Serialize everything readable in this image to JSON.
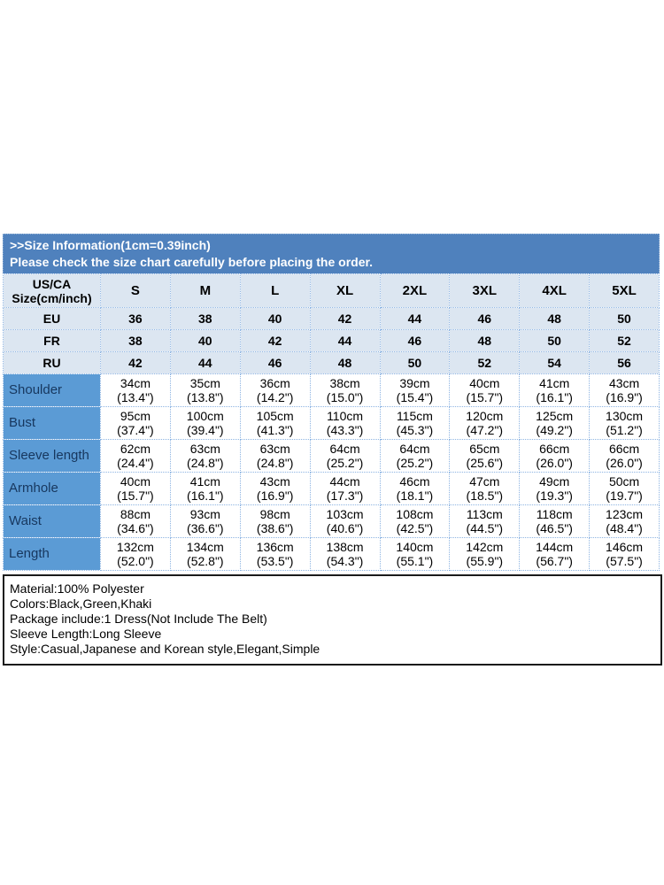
{
  "banner": {
    "line1": ">>Size Information(1cm=0.39inch)",
    "line2": "Please check the size chart carefully before placing the order."
  },
  "table": {
    "corner_line1": "US/CA",
    "corner_line2": "Size(cm/inch)",
    "size_columns": [
      "S",
      "M",
      "L",
      "XL",
      "2XL",
      "3XL",
      "4XL",
      "5XL"
    ],
    "region_rows": [
      {
        "label": "EU",
        "values": [
          "36",
          "38",
          "40",
          "42",
          "44",
          "46",
          "48",
          "50"
        ]
      },
      {
        "label": "FR",
        "values": [
          "38",
          "40",
          "42",
          "44",
          "46",
          "48",
          "50",
          "52"
        ]
      },
      {
        "label": "RU",
        "values": [
          "42",
          "44",
          "46",
          "48",
          "50",
          "52",
          "54",
          "56"
        ]
      }
    ],
    "measurement_rows": [
      {
        "label": "Shoulder",
        "cm": [
          "34cm",
          "35cm",
          "36cm",
          "38cm",
          "39cm",
          "40cm",
          "41cm",
          "43cm"
        ],
        "inch": [
          "(13.4\")",
          "(13.8\")",
          "(14.2\")",
          "(15.0\")",
          "(15.4\")",
          "(15.7\")",
          "(16.1\")",
          "(16.9\")"
        ]
      },
      {
        "label": "Bust",
        "cm": [
          "95cm",
          "100cm",
          "105cm",
          "110cm",
          "115cm",
          "120cm",
          "125cm",
          "130cm"
        ],
        "inch": [
          "(37.4\")",
          "(39.4\")",
          "(41.3\")",
          "(43.3\")",
          "(45.3\")",
          "(47.2\")",
          "(49.2\")",
          "(51.2\")"
        ]
      },
      {
        "label": "Sleeve length",
        "cm": [
          "62cm",
          "63cm",
          "63cm",
          "64cm",
          "64cm",
          "65cm",
          "66cm",
          "66cm"
        ],
        "inch": [
          "(24.4\")",
          "(24.8\")",
          "(24.8\")",
          "(25.2\")",
          "(25.2\")",
          "(25.6\")",
          "(26.0\")",
          "(26.0\")"
        ]
      },
      {
        "label": "Armhole",
        "cm": [
          "40cm",
          "41cm",
          "43cm",
          "44cm",
          "46cm",
          "47cm",
          "49cm",
          "50cm"
        ],
        "inch": [
          "(15.7\")",
          "(16.1\")",
          "(16.9\")",
          "(17.3\")",
          "(18.1\")",
          "(18.5\")",
          "(19.3\")",
          "(19.7\")"
        ]
      },
      {
        "label": "Waist",
        "cm": [
          "88cm",
          "93cm",
          "98cm",
          "103cm",
          "108cm",
          "113cm",
          "118cm",
          "123cm"
        ],
        "inch": [
          "(34.6\")",
          "(36.6\")",
          "(38.6\")",
          "(40.6\")",
          "(42.5\")",
          "(44.5\")",
          "(46.5\")",
          "(48.4\")"
        ]
      },
      {
        "label": "Length",
        "cm": [
          "132cm",
          "134cm",
          "136cm",
          "138cm",
          "140cm",
          "142cm",
          "144cm",
          "146cm"
        ],
        "inch": [
          "(52.0\")",
          "(52.8\")",
          "(53.5\")",
          "(54.3\")",
          "(55.1\")",
          "(55.9\")",
          "(56.7\")",
          "(57.5\")"
        ]
      }
    ]
  },
  "info_box": {
    "lines": [
      "Material:100% Polyester",
      "Colors:Black,Green,Khaki",
      "Package include:1 Dress(Not Include The Belt)",
      "Sleeve Length:Long Sleeve",
      "Style:Casual,Japanese and Korean style,Elegant,Simple"
    ]
  },
  "colors": {
    "banner_bg": "#4f81bd",
    "banner_text": "#ffffff",
    "light_row_bg": "#dce6f1",
    "measure_label_bg": "#5b9bd5",
    "measure_label_text": "#17375e",
    "cell_border": "#8db4e2",
    "info_border": "#1a1a1a",
    "page_bg": "#ffffff"
  }
}
